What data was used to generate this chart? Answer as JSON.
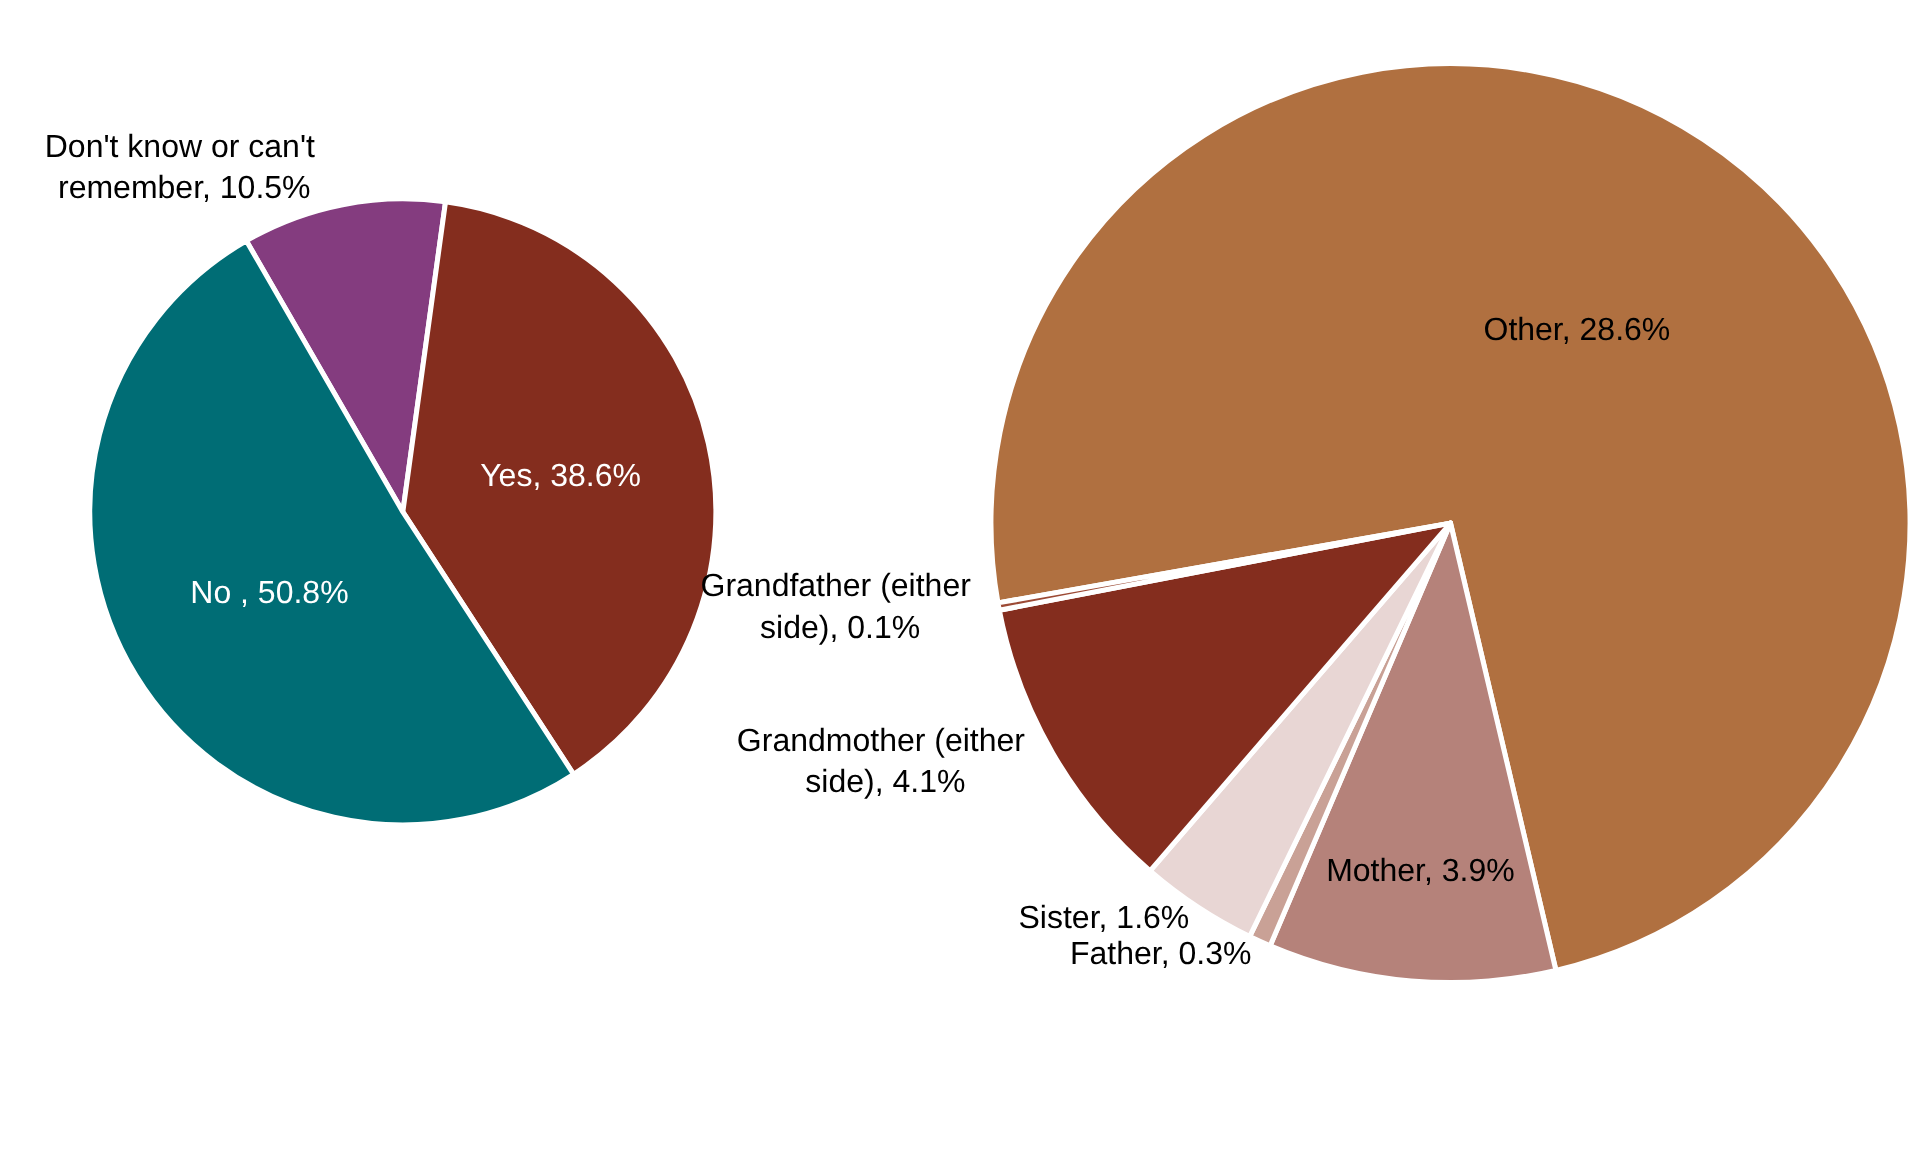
{
  "chart_data": [
    {
      "type": "pie",
      "categories": [
        "Don't know or can't remember",
        "Yes",
        "No "
      ],
      "values": [
        10.5,
        38.6,
        50.8
      ],
      "colors": [
        "#843c7f",
        "#842d1e",
        "#006d75"
      ],
      "value_labels": [
        "10.5%",
        "38.6%",
        "50.8%"
      ],
      "legend": false
    },
    {
      "type": "pie",
      "categories": [
        "Other",
        "Mother",
        "Father",
        "Sister",
        "Grandmother (either side)",
        "Grandfather (either side)"
      ],
      "values": [
        28.6,
        3.9,
        0.3,
        1.6,
        4.1,
        0.1
      ],
      "colors": [
        "#b07040",
        "#b5827a",
        "#c9a196",
        "#e8d6d4",
        "#842d1e",
        "#9c4a35"
      ],
      "value_labels": [
        "28.6%",
        "3.9%",
        "0.3%",
        "1.6%",
        "4.1%",
        "0.1%"
      ],
      "legend": false
    }
  ]
}
